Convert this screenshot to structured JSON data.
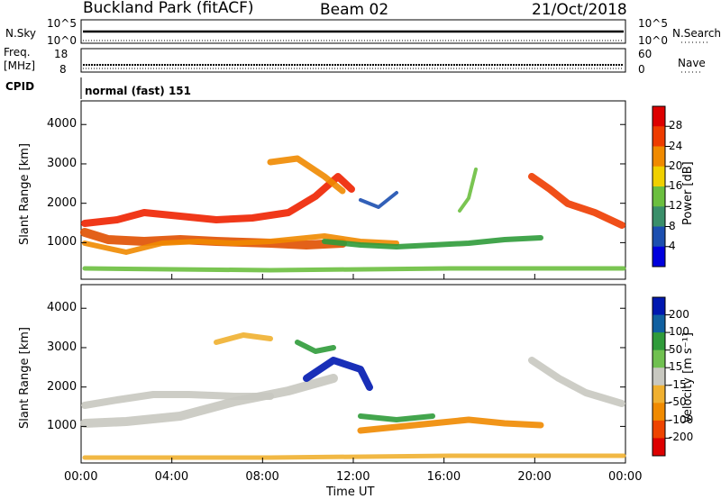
{
  "header": {
    "title": "Buckland Park (fitACF)",
    "beam": "Beam 02",
    "date": "21/Oct/2018"
  },
  "top_panels": {
    "nsky_label": "N.Sky",
    "nsearch_label": "N.Search",
    "nsky_ticks": [
      "10^5",
      "10^0"
    ],
    "nsearch_ticks": [
      "10^5",
      "10^0"
    ],
    "freq_label_1": "Freq.",
    "freq_label_2": "[MHz]",
    "freq_ticks": [
      "18",
      "8"
    ],
    "nave_label": "Nave",
    "nave_ticks": [
      "60",
      "0"
    ],
    "cpid_label": "CPID",
    "cpid_value": "normal (fast) 151"
  },
  "colors": {
    "power_scale": [
      "#0000dd",
      "#1c4fb0",
      "#3a8f6a",
      "#6bbf3f",
      "#f0d000",
      "#f08a00",
      "#ee3c00",
      "#dd0000"
    ],
    "velocity_scale": [
      "#dd0000",
      "#ee4400",
      "#f08a00",
      "#f0b030",
      "#c8c8c0",
      "#70c050",
      "#2f9b3a",
      "#1060a0",
      "#0018b0"
    ]
  },
  "chart_data": [
    {
      "type": "heatmap",
      "title": "",
      "ylabel": "Slant Range [km]",
      "xlabel": "",
      "x_ticks": [
        "00:00",
        "04:00",
        "08:00",
        "12:00",
        "16:00",
        "20:00",
        "00:00"
      ],
      "y_ticks": [
        "1000",
        "2000",
        "3000",
        "4000"
      ],
      "colorbar_label": "Power [dB]",
      "colorbar_ticks": [
        "28",
        "24",
        "20",
        "16",
        "12",
        "8",
        "4"
      ],
      "range_label_note": ""
    },
    {
      "type": "heatmap",
      "title": "",
      "ylabel": "Slant Range [km]",
      "xlabel": "Time UT",
      "x_ticks": [
        "00:00",
        "04:00",
        "08:00",
        "12:00",
        "16:00",
        "20:00",
        "00:00"
      ],
      "y_ticks": [
        "1000",
        "2000",
        "3000",
        "4000"
      ],
      "colorbar_label": "Velocity [m s⁻¹]",
      "colorbar_ticks": [
        "200",
        "100",
        "50",
        "15",
        "-15",
        "-50",
        "-100",
        "-200"
      ]
    }
  ]
}
